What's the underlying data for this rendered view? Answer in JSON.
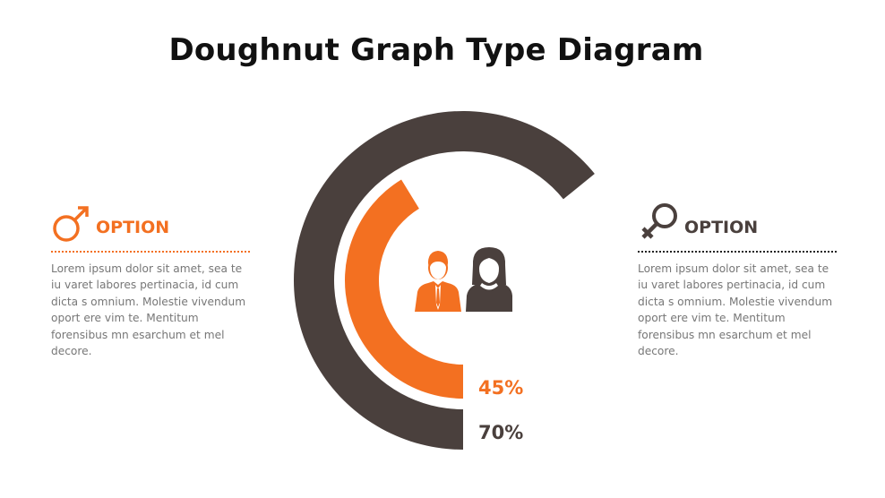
{
  "title": "Doughnut Graph Type Diagram",
  "colors": {
    "male": "#f37021",
    "female": "#4a403d",
    "text": "#777777"
  },
  "left_panel": {
    "icon": "male-symbol-icon",
    "heading": "OPTION",
    "body": "Lorem ipsum dolor sit amet, sea te iu varet labores pertinacia, id cum dicta s omnium. Molestie vivendum oport ere vim te. Mentitum forensibus mn esarchum et mel decore."
  },
  "right_panel": {
    "icon": "female-symbol-icon",
    "heading": "OPTION",
    "body": "Lorem ipsum dolor sit amet, sea te iu varet labores pertinacia, id cum dicta s omnium. Molestie vivendum oport ere vim te. Mentitum forensibus mn esarchum et mel decore."
  },
  "center_icons": [
    "businessman-icon",
    "woman-icon"
  ],
  "chart_data": {
    "type": "doughnut",
    "series": [
      {
        "label": "45%",
        "value": 45,
        "color": "#f37021"
      },
      {
        "label": "70%",
        "value": 70,
        "color": "#4a403d"
      }
    ]
  }
}
